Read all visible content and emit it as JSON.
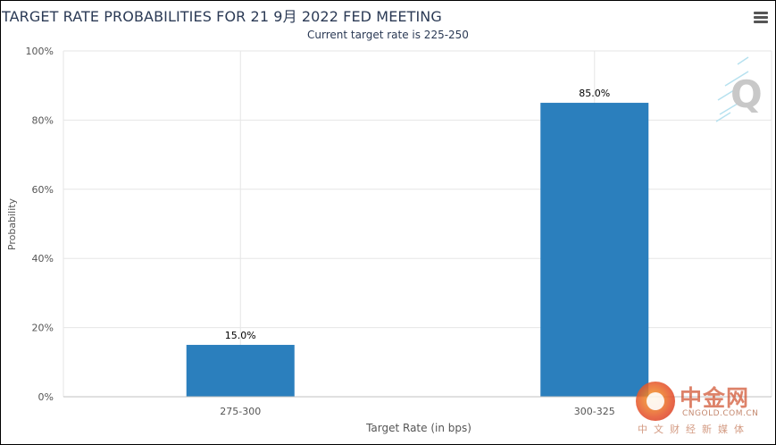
{
  "chart_data": {
    "type": "bar",
    "title": "TARGET RATE PROBABILITIES FOR 21 9月 2022 FED MEETING",
    "subtitle": "Current target rate is 225-250",
    "categories": [
      "275-300",
      "300-325"
    ],
    "values": [
      15.0,
      85.0
    ],
    "data_labels": [
      "15.0%",
      "85.0%"
    ],
    "xlabel": "Target Rate (in bps)",
    "ylabel": "Probability",
    "ylim": [
      0,
      100
    ],
    "yticks": [
      "0%",
      "20%",
      "40%",
      "60%",
      "80%",
      "100%"
    ],
    "grid": true,
    "bar_color": "#2b7fbd"
  },
  "watermarks": {
    "q_logo": "Q",
    "site_name": "中金网",
    "site_domain": "CNGOLD.COM.CN",
    "site_tagline": "中文财经新媒体"
  },
  "icons": {
    "menu": "hamburger-menu-icon"
  }
}
